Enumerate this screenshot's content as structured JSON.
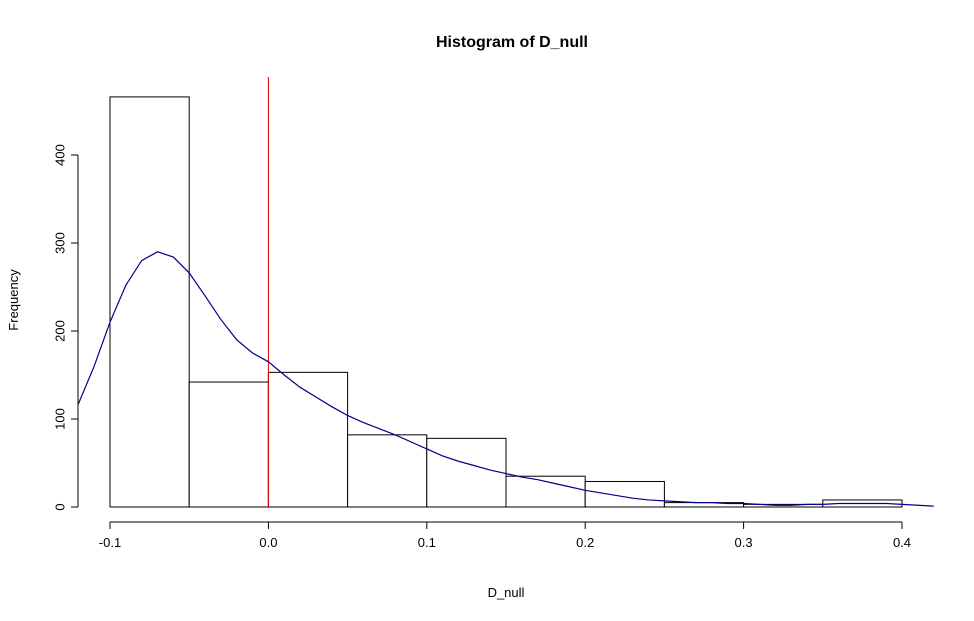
{
  "chart_data": {
    "type": "bar",
    "title": "Histogram of D_null",
    "xlabel": "D_null",
    "ylabel": "Frequency",
    "xlim": [
      -0.12,
      0.42
    ],
    "ylim": [
      0,
      480
    ],
    "bins": [
      {
        "start": -0.1,
        "end": -0.05,
        "count": 466
      },
      {
        "start": -0.05,
        "end": 0.0,
        "count": 142
      },
      {
        "start": 0.0,
        "end": 0.05,
        "count": 153
      },
      {
        "start": 0.05,
        "end": 0.1,
        "count": 82
      },
      {
        "start": 0.1,
        "end": 0.15,
        "count": 78
      },
      {
        "start": 0.15,
        "end": 0.2,
        "count": 35
      },
      {
        "start": 0.2,
        "end": 0.25,
        "count": 29
      },
      {
        "start": 0.25,
        "end": 0.3,
        "count": 5
      },
      {
        "start": 0.3,
        "end": 0.35,
        "count": 3
      },
      {
        "start": 0.35,
        "end": 0.4,
        "count": 8
      }
    ],
    "x_ticks": [
      -0.1,
      0.0,
      0.1,
      0.2,
      0.3,
      0.4
    ],
    "x_tick_labels": [
      "-0.1",
      "0.0",
      "0.1",
      "0.2",
      "0.3",
      "0.4"
    ],
    "y_ticks": [
      0,
      100,
      200,
      300,
      400
    ],
    "y_tick_labels": [
      "0",
      "100",
      "200",
      "300",
      "400"
    ],
    "vline": {
      "x": 0.0,
      "color": "#dd0000"
    },
    "density_curve": {
      "color": "#00008b",
      "x": [
        -0.12,
        -0.11,
        -0.1,
        -0.09,
        -0.08,
        -0.07,
        -0.06,
        -0.05,
        -0.04,
        -0.03,
        -0.02,
        -0.01,
        0.0,
        0.01,
        0.02,
        0.03,
        0.04,
        0.05,
        0.06,
        0.07,
        0.08,
        0.09,
        0.1,
        0.11,
        0.12,
        0.13,
        0.14,
        0.15,
        0.16,
        0.17,
        0.18,
        0.19,
        0.2,
        0.21,
        0.22,
        0.23,
        0.24,
        0.25,
        0.26,
        0.27,
        0.28,
        0.29,
        0.3,
        0.31,
        0.32,
        0.33,
        0.34,
        0.35,
        0.36,
        0.37,
        0.38,
        0.39,
        0.4,
        0.41,
        0.42
      ],
      "y": [
        117,
        160,
        210,
        252,
        280,
        290,
        284,
        266,
        240,
        213,
        190,
        175,
        165,
        150,
        136,
        125,
        114,
        104,
        96,
        89,
        82,
        74,
        66,
        58,
        52,
        47,
        42,
        38,
        34,
        31,
        27,
        23,
        19,
        16,
        13,
        10,
        8,
        7,
        6,
        5,
        5,
        4,
        4,
        3,
        2,
        2,
        3,
        3,
        4,
        4,
        4,
        4,
        3,
        2,
        1
      ]
    },
    "colors": {
      "bars_stroke": "#000000",
      "bars_fill": "#ffffff",
      "background": "#ffffff"
    },
    "grid": false,
    "legend": "none"
  }
}
